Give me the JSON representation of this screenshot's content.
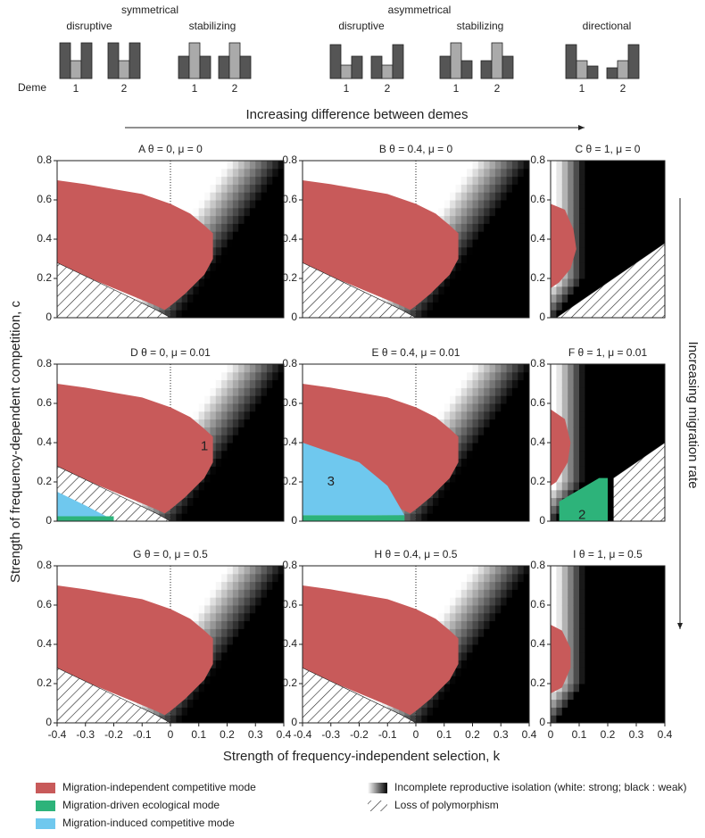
{
  "header": {
    "symmetrical": "symmetrical",
    "asymmetrical": "asymmetrical",
    "deme_label": "Deme",
    "groups": [
      {
        "label": "disruptive",
        "demes": [
          "1",
          "2"
        ]
      },
      {
        "label": "stabilizing",
        "demes": [
          "1",
          "2"
        ]
      },
      {
        "label": "disruptive",
        "demes": [
          "1",
          "2"
        ]
      },
      {
        "label": "stabilizing",
        "demes": [
          "1",
          "2"
        ]
      },
      {
        "label": "directional",
        "demes": [
          "1",
          "2"
        ]
      }
    ]
  },
  "x_arrow_label": "Increasing difference between demes",
  "y_arrow_label": "Increasing migration rate",
  "panels": [
    {
      "title": "A θ = 0, μ = 0"
    },
    {
      "title": "B θ = 0.4, μ = 0"
    },
    {
      "title": "C θ = 1, μ = 0"
    },
    {
      "title": "D θ = 0, μ = 0.01"
    },
    {
      "title": "E θ = 0.4, μ = 0.01"
    },
    {
      "title": "F θ = 1, μ = 0.01"
    },
    {
      "title": "G θ = 0, μ = 0.5"
    },
    {
      "title": "H θ = 0.4, μ = 0.5"
    },
    {
      "title": "I θ = 1, μ = 0.5"
    }
  ],
  "annotations": [
    {
      "panel": 3,
      "text": "1"
    },
    {
      "panel": 4,
      "text": "3"
    },
    {
      "panel": 5,
      "text": "2"
    }
  ],
  "xlabel": "Strength of frequency-independent selection, k",
  "ylabel": "Strength of frequency-dependent competition, c",
  "yticks": [
    "0",
    "0.2",
    "0.4",
    "0.6",
    "0.8"
  ],
  "xticks_wide": [
    "-0.4",
    "-0.3",
    "-0.2",
    "-0.1",
    "0",
    "0.1",
    "0.2",
    "0.3",
    "0.4"
  ],
  "xticks_narrow": [
    "0",
    "0.1",
    "0.2",
    "0.3",
    "0.4"
  ],
  "legend": [
    "Migration-independent competitive mode",
    "Migration-driven ecological mode",
    "Migration-induced competitive mode",
    "Incomplete reproductive isolation (white: strong; black : weak)",
    "Loss of polymorphism"
  ]
}
